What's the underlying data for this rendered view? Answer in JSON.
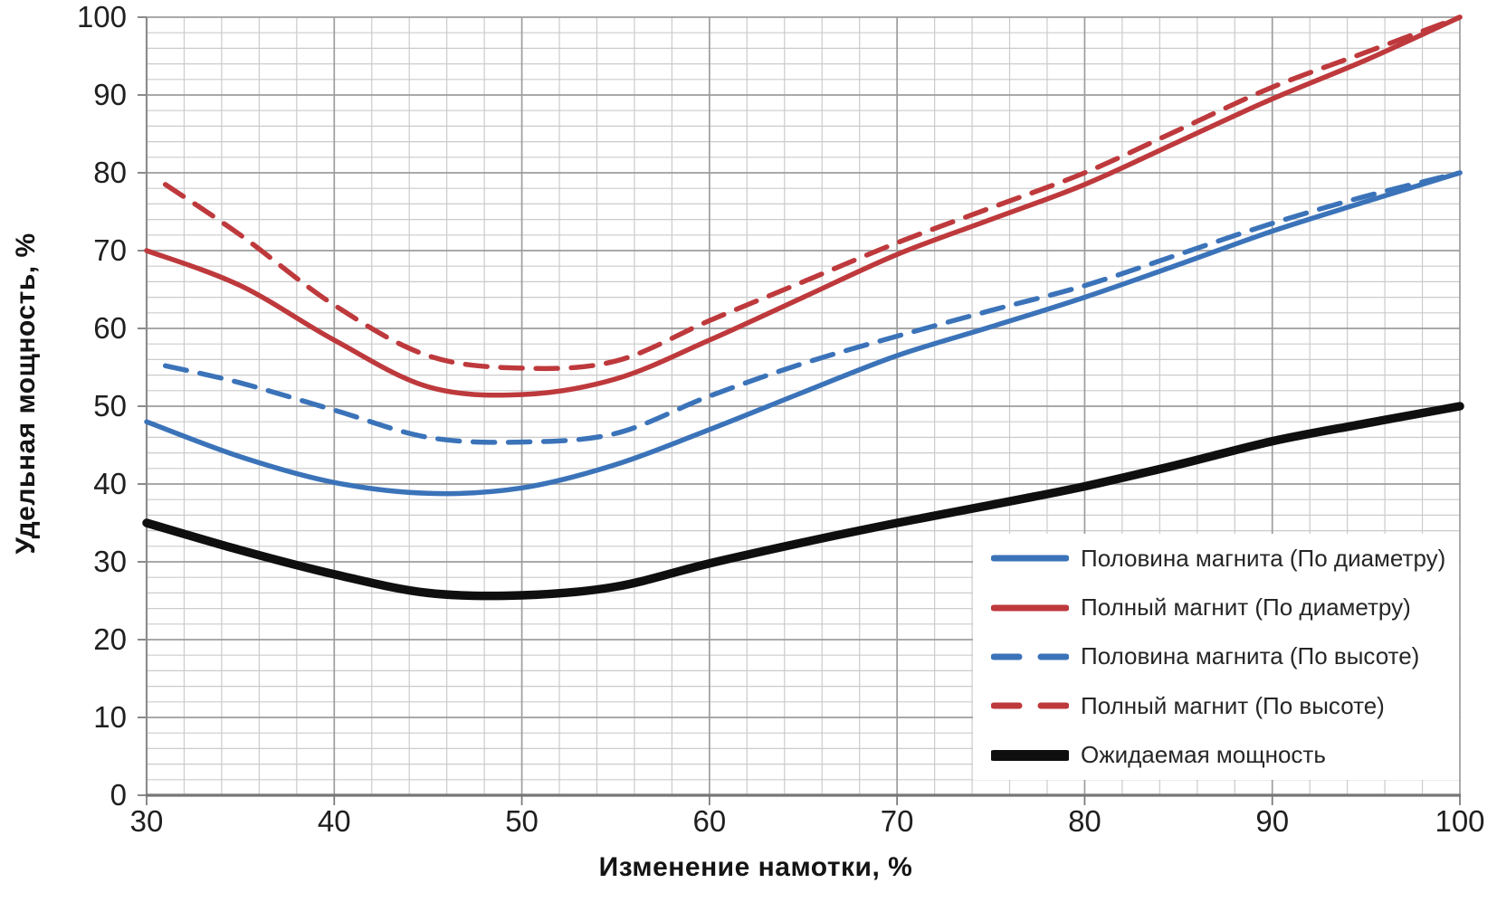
{
  "chart_data": {
    "type": "line",
    "title": "",
    "xlabel": "Изменение намотки, %",
    "ylabel": "Удельная мощность, %",
    "xlim": [
      30,
      100
    ],
    "ylim": [
      0,
      100
    ],
    "x_ticks": [
      30,
      40,
      50,
      60,
      70,
      80,
      90,
      100
    ],
    "y_ticks": [
      0,
      10,
      20,
      30,
      40,
      50,
      60,
      70,
      80,
      90,
      100
    ],
    "grid": {
      "minor_step": 2,
      "major_step": 10,
      "minor_color": "#cbcbcb",
      "major_color": "#9d9d9d",
      "axis_color": "#767676"
    },
    "legend_position": "lower right",
    "series": [
      {
        "name": "Половина магнита (По диаметру)",
        "color": "#3B73B9",
        "style": "solid",
        "width": 5.5,
        "x": [
          30,
          35,
          40,
          45,
          50,
          55,
          60,
          65,
          70,
          75,
          80,
          85,
          90,
          95,
          100
        ],
        "y": [
          48,
          43.5,
          40.2,
          38.8,
          39.5,
          42.5,
          47,
          51.8,
          56.5,
          60.2,
          64,
          68.2,
          72.5,
          76.3,
          80
        ]
      },
      {
        "name": "Полный магнит (По диаметру)",
        "color": "#BE393C",
        "style": "solid",
        "width": 5.5,
        "x": [
          30,
          35,
          40,
          45,
          50,
          55,
          60,
          65,
          70,
          75,
          80,
          85,
          90,
          95,
          100
        ],
        "y": [
          70,
          65.5,
          58.5,
          52.5,
          51.5,
          53.5,
          58.5,
          64,
          69.5,
          74,
          78.5,
          84,
          89.5,
          94.5,
          100
        ]
      },
      {
        "name": "Половина магнита (По высоте)",
        "color": "#3B73B9",
        "style": "dashed",
        "width": 5.5,
        "x": [
          31,
          35,
          40,
          45,
          50,
          55,
          60,
          65,
          70,
          75,
          80,
          85,
          90,
          95,
          100
        ],
        "y": [
          55.2,
          53,
          49.5,
          46,
          45.4,
          46.5,
          51.3,
          55.5,
          59,
          62.3,
          65.5,
          69.5,
          73.5,
          77,
          80
        ]
      },
      {
        "name": "Полный магнит (По высоте)",
        "color": "#BE393C",
        "style": "dashed",
        "width": 5.5,
        "x": [
          31,
          35,
          40,
          45,
          50,
          55,
          60,
          65,
          70,
          75,
          80,
          85,
          90,
          95,
          100
        ],
        "y": [
          78.5,
          72,
          63,
          56.5,
          54.9,
          55.8,
          61,
          66,
          71,
          75.5,
          80,
          85.5,
          91,
          95.5,
          100
        ]
      },
      {
        "name": "Ожидаемая мощность",
        "color": "#0f0f0f",
        "style": "solid",
        "width": 9.5,
        "x": [
          30,
          35,
          40,
          45,
          50,
          55,
          60,
          65,
          70,
          75,
          80,
          85,
          90,
          95,
          100
        ],
        "y": [
          35,
          31.5,
          28.4,
          26,
          25.7,
          26.8,
          29.8,
          32.5,
          35,
          37.3,
          39.7,
          42.5,
          45.5,
          47.8,
          50
        ]
      }
    ],
    "tick_label_color": "#1f1f1f"
  }
}
